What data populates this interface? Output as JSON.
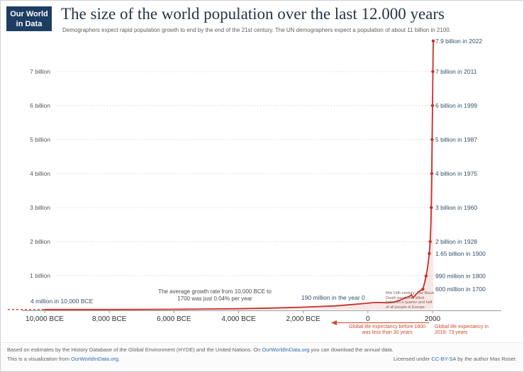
{
  "logo": {
    "line1": "Our World",
    "line2": "in Data"
  },
  "header": {
    "title": "The size of the world population over the last 12.000 years",
    "subtitle": "Demographers expect rapid population growth to end by the end of the 21st century. The UN demographers expect a population of about 11 billion in 2100."
  },
  "chart_data": {
    "type": "line",
    "title": "World population over the last 12,000 years",
    "x_axis": {
      "ticks": [
        "10,000 BCE",
        "8,000 BCE",
        "6,000 BCE",
        "4,000 BCE",
        "2,000 BCE",
        "0",
        "2000"
      ],
      "tick_years": [
        -10000,
        -8000,
        -6000,
        -4000,
        -2000,
        0,
        2000
      ],
      "range_years": [
        -10000,
        2022
      ]
    },
    "y_axis": {
      "ticks": [
        "1 billion",
        "2 billion",
        "3 billion",
        "4 billion",
        "5 billion",
        "6 billion",
        "7 billion"
      ],
      "tick_values_billions": [
        1,
        2,
        3,
        4,
        5,
        6,
        7
      ],
      "range_billions": [
        0,
        7.9
      ],
      "grid": "dotted"
    },
    "series": [
      {
        "name": "World population (billions)",
        "color": "#c7302b",
        "area_color": "rgba(203,58,48,0.12)",
        "points_year_billions": [
          [
            -10000,
            0.004
          ],
          [
            -9000,
            0.004
          ],
          [
            -8000,
            0.005
          ],
          [
            -7000,
            0.007
          ],
          [
            -6000,
            0.011
          ],
          [
            -5000,
            0.019
          ],
          [
            -4000,
            0.028
          ],
          [
            -3000,
            0.045
          ],
          [
            -2000,
            0.072
          ],
          [
            -1000,
            0.11
          ],
          [
            -500,
            0.15
          ],
          [
            0,
            0.19
          ],
          [
            200,
            0.21
          ],
          [
            400,
            0.21
          ],
          [
            600,
            0.2
          ],
          [
            800,
            0.22
          ],
          [
            1000,
            0.28
          ],
          [
            1100,
            0.32
          ],
          [
            1200,
            0.36
          ],
          [
            1300,
            0.4
          ],
          [
            1348,
            0.44
          ],
          [
            1400,
            0.35
          ],
          [
            1500,
            0.46
          ],
          [
            1600,
            0.55
          ],
          [
            1700,
            0.6
          ],
          [
            1750,
            0.77
          ],
          [
            1800,
            0.99
          ],
          [
            1850,
            1.26
          ],
          [
            1900,
            1.65
          ],
          [
            1928,
            2.0
          ],
          [
            1950,
            2.53
          ],
          [
            1960,
            3.0
          ],
          [
            1975,
            4.0
          ],
          [
            1987,
            5.0
          ],
          [
            1999,
            6.0
          ],
          [
            2011,
            7.0
          ],
          [
            2022,
            7.9
          ]
        ]
      }
    ],
    "milestones": [
      {
        "label": "7.9 billion in 2022",
        "year": 2022,
        "billions": 7.9
      },
      {
        "label": "7 billion in 2011",
        "year": 2011,
        "billions": 7.0
      },
      {
        "label": "6 billion in 1999",
        "year": 1999,
        "billions": 6.0
      },
      {
        "label": "5 billion in 1987",
        "year": 1987,
        "billions": 5.0
      },
      {
        "label": "4 billion in 1975",
        "year": 1975,
        "billions": 4.0
      },
      {
        "label": "3 billion in 1960",
        "year": 1960,
        "billions": 3.0
      },
      {
        "label": "2 billion in 1928",
        "year": 1928,
        "billions": 2.0
      },
      {
        "label": "1.65 billion in 1900",
        "year": 1900,
        "billions": 1.65
      },
      {
        "label": "990 million in 1800",
        "year": 1800,
        "billions": 0.99
      },
      {
        "label": "600 million in 1700",
        "year": 1700,
        "billions": 0.6
      }
    ],
    "annotations": {
      "start": "4 million in 10,000 BCE",
      "growth_rate": "The average growth rate from 10,000 BCE to 1700 was just 0.04% per year",
      "year_zero": "190 million in the year 0",
      "black_death": "Mid 14th century: The Black Death pandemic killed between a quarter and half of all people in Europe.",
      "life_expectancy_before": "Global life expectancy before 1800 was less than 30 years",
      "life_expectancy_2019": "Global life expectancy in 2019: 73 years"
    }
  },
  "footer": {
    "line1_before": "Based on estimates by the History Database of the Global Environment (HYDE) and the United Nations. On ",
    "line1_link": "OurWorldInData.org",
    "line1_after": " you can download the annual data.",
    "line2_before": "This is a visualization from ",
    "line2_link": "OurWorldInData.org",
    "line2_after": ".",
    "license_before": "Licensed under ",
    "license_link": "CC-BY-SA",
    "license_after": " by the author Max Roser."
  },
  "colors": {
    "line_red": "#c7302b",
    "milestone_label": "#33506b",
    "life_expectancy": "#d0492a",
    "logo_navy": "#1d3d63",
    "link_blue": "#2d6ba8"
  }
}
